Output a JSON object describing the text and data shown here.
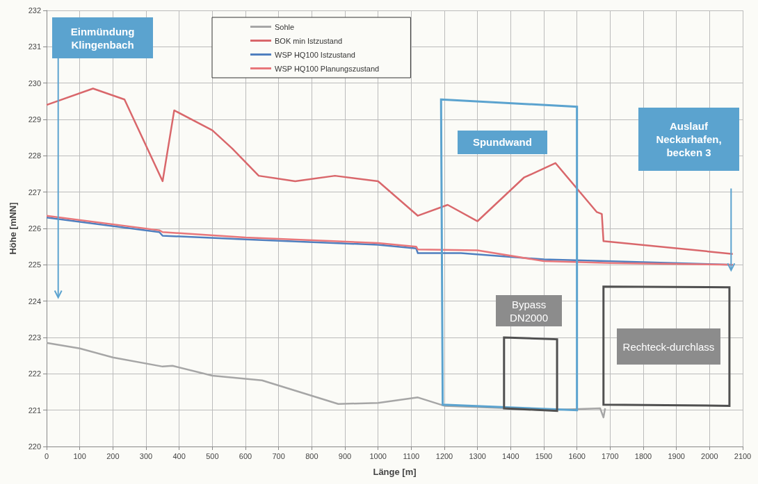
{
  "chart_data": {
    "type": "line",
    "xlabel": "Länge [m]",
    "ylabel": "Höhe [mNN]",
    "xlim": [
      0,
      2100
    ],
    "xticks": [
      0,
      100,
      200,
      300,
      400,
      500,
      600,
      700,
      800,
      900,
      1000,
      1100,
      1200,
      1300,
      1400,
      1500,
      1600,
      1700,
      1800,
      1900,
      2000,
      2100
    ],
    "ylim": [
      220,
      232
    ],
    "yticks": [
      220,
      221,
      222,
      223,
      224,
      225,
      226,
      227,
      228,
      229,
      230,
      231,
      232
    ],
    "grid": true,
    "legend": "top",
    "marker": "none",
    "line_style": "solid",
    "series": [
      {
        "name": "Sohle",
        "color": "#a6a6a6",
        "x": [
          0,
          100,
          200,
          350,
          380,
          500,
          650,
          880,
          1000,
          1120,
          1200,
          1400,
          1500,
          1670,
          1680,
          1685
        ],
        "values": [
          222.85,
          222.7,
          222.45,
          222.2,
          222.22,
          221.95,
          221.82,
          221.17,
          221.2,
          221.35,
          221.12,
          221.05,
          221.0,
          221.05,
          220.8,
          221.05
        ]
      },
      {
        "name": "BOK min Istzustand",
        "color": "#d9676b",
        "x": [
          0,
          140,
          235,
          350,
          385,
          500,
          560,
          640,
          750,
          870,
          1000,
          1120,
          1210,
          1300,
          1440,
          1535,
          1660,
          1675,
          1680,
          2070
        ],
        "values": [
          229.4,
          229.85,
          229.55,
          227.3,
          229.25,
          228.7,
          228.2,
          227.45,
          227.3,
          227.45,
          227.3,
          226.35,
          226.65,
          226.2,
          227.4,
          227.8,
          226.45,
          226.4,
          225.65,
          225.3
        ]
      },
      {
        "name": "WSP HQ100 Istzustand",
        "color": "#4f7fbf",
        "x": [
          0,
          340,
          350,
          600,
          1000,
          1115,
          1120,
          1250,
          1500,
          1690,
          2070
        ],
        "values": [
          226.3,
          225.9,
          225.8,
          225.7,
          225.55,
          225.45,
          225.32,
          225.32,
          225.15,
          225.1,
          225.0
        ]
      },
      {
        "name": "WSP HQ100 Planungszustand",
        "color": "#e8767a",
        "x": [
          0,
          340,
          350,
          600,
          1000,
          1115,
          1120,
          1300,
          1500,
          1700,
          2070
        ],
        "values": [
          226.35,
          225.95,
          225.9,
          225.75,
          225.6,
          225.5,
          225.42,
          225.4,
          225.1,
          225.05,
          225.0
        ]
      }
    ],
    "annotations": [
      "Einmündung Klingenbach",
      "Spundwand",
      "Auslauf Neckarhafen, becken 3",
      "Bypass DN2000",
      "Rechteck-durchlass"
    ]
  }
}
